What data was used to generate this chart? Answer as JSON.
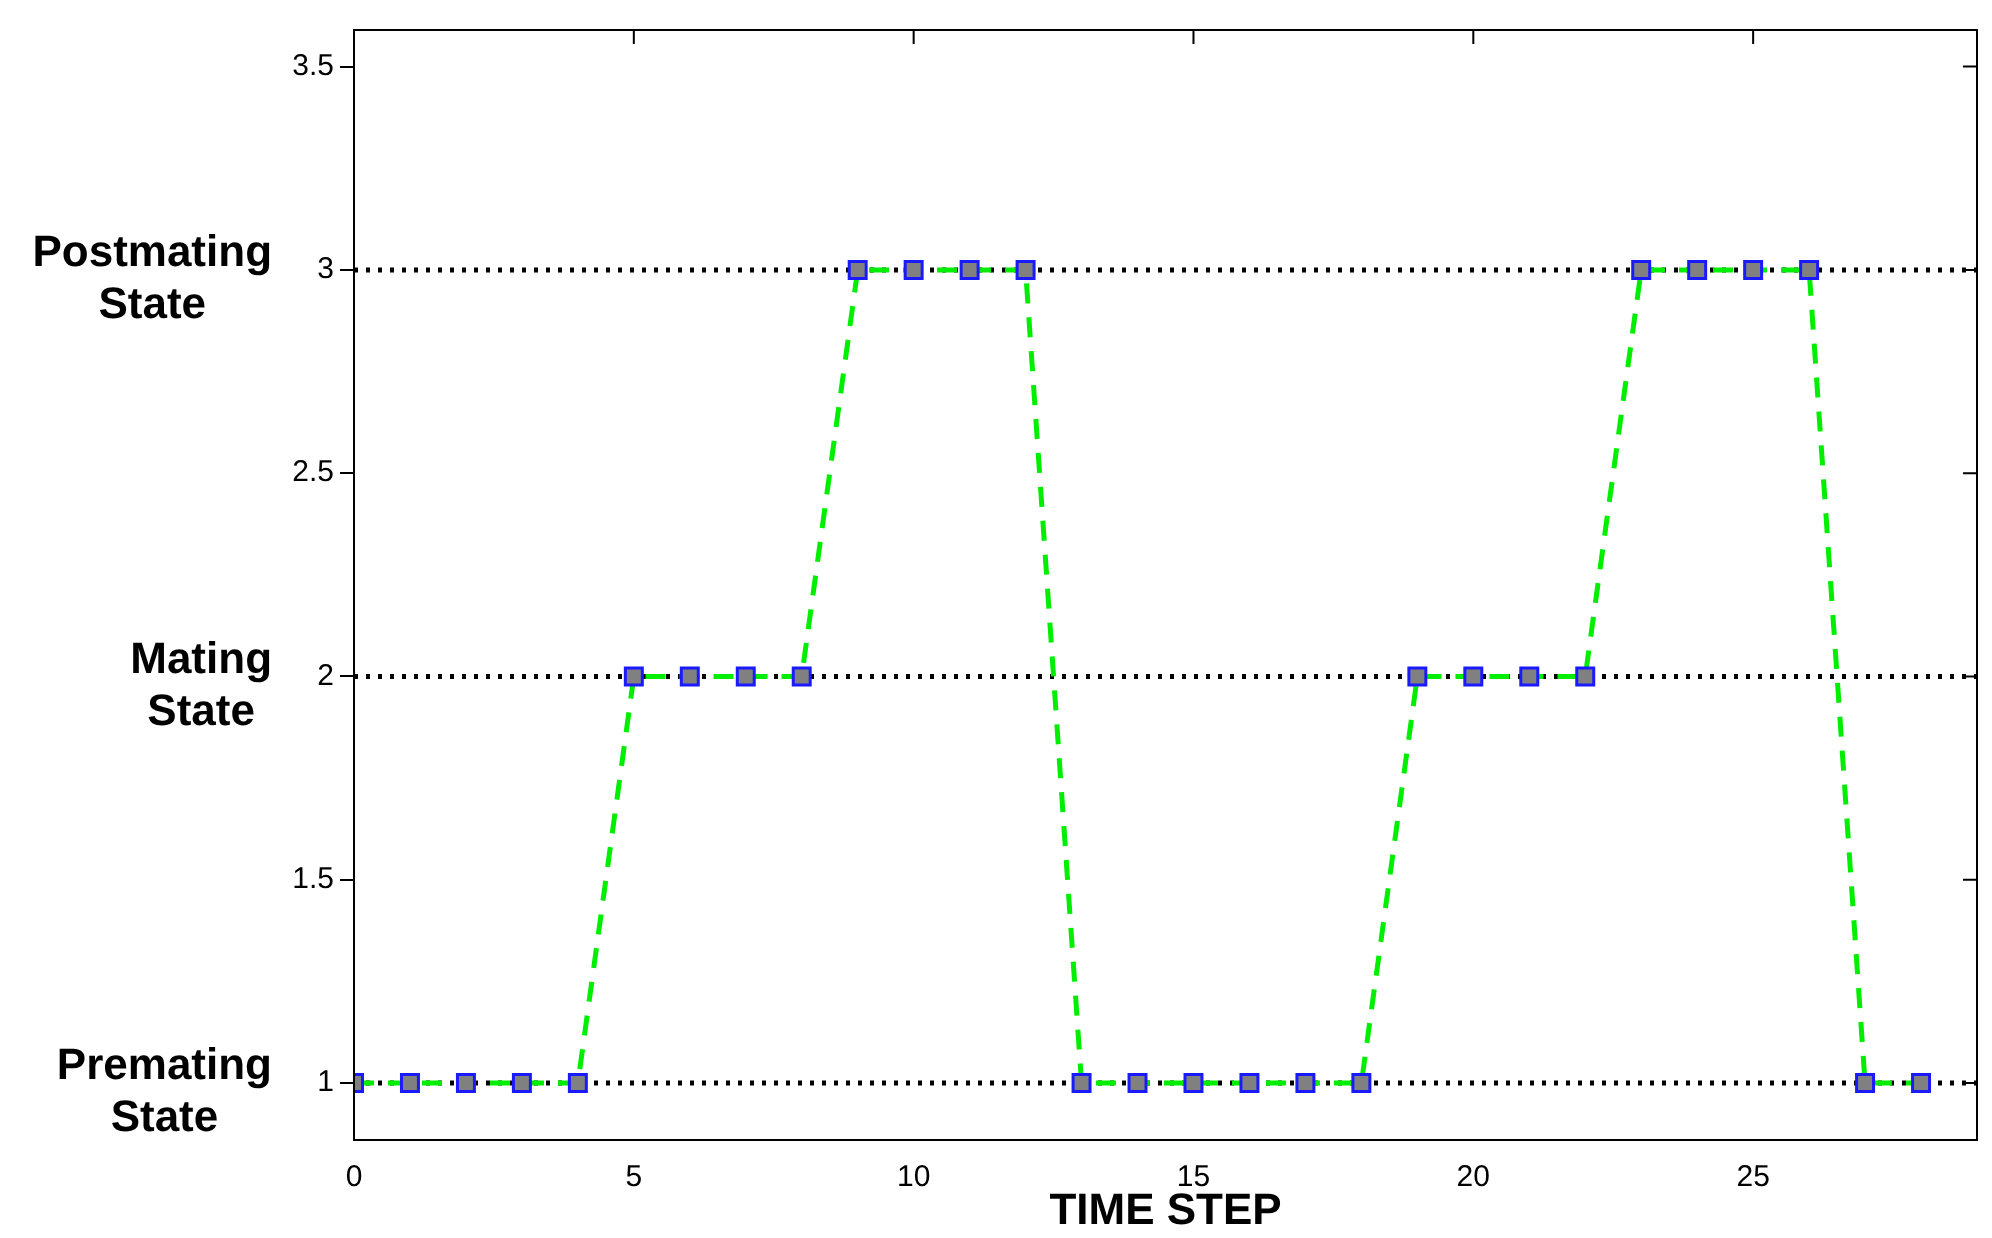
{
  "chart_data": {
    "type": "line",
    "xlabel": "TIME STEP",
    "x": [
      0,
      1,
      2,
      3,
      4,
      5,
      6,
      7,
      8,
      9,
      10,
      11,
      12,
      13,
      14,
      15,
      16,
      17,
      18,
      19,
      20,
      21,
      22,
      23,
      24,
      25,
      26,
      27,
      28
    ],
    "series": [
      {
        "color": "#00ee00",
        "values": [
          1,
          1,
          1,
          1,
          1,
          2,
          2,
          2,
          2,
          3,
          3,
          3,
          3,
          1,
          1,
          1,
          1,
          1,
          1,
          2,
          2,
          2,
          2,
          3,
          3,
          3,
          3,
          1,
          1
        ]
      }
    ],
    "xlim": [
      0,
      29
    ],
    "xticks": [
      0,
      5,
      10,
      15,
      20,
      25
    ],
    "ylim": [
      0.86,
      3.59
    ],
    "yticks": [
      1,
      1.5,
      2,
      2.5,
      3,
      3.5
    ],
    "ref_lines": [
      {
        "axis": "y",
        "value": 1,
        "label": "Premating State",
        "color": "#000000",
        "line_style": "dotted"
      },
      {
        "axis": "y",
        "value": 2,
        "label": "Mating State",
        "color": "#000000",
        "line_style": "dotted"
      },
      {
        "axis": "y",
        "value": 3,
        "label": "Postmating State",
        "color": "#000000",
        "line_style": "dotted"
      }
    ],
    "marker": "square",
    "line_style": "dashed",
    "grid": false,
    "legend": false
  }
}
